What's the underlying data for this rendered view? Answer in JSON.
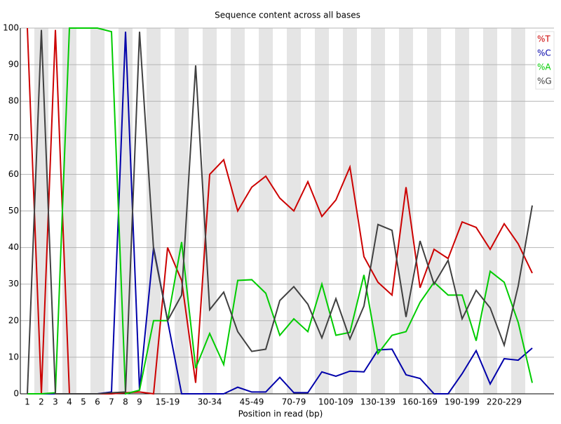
{
  "chart_data": {
    "type": "line",
    "title": "Sequence content across all bases",
    "x_label": "Position in read (bp)",
    "categories": [
      "1",
      "2",
      "3",
      "4",
      "5",
      "6",
      "7",
      "8",
      "9",
      null,
      "15-19",
      null,
      null,
      "30-34",
      null,
      null,
      "45-49",
      null,
      null,
      "70-79",
      null,
      null,
      "100-109",
      null,
      null,
      "130-139",
      null,
      null,
      "160-169",
      null,
      null,
      "190-199",
      null,
      null,
      "220-229",
      null,
      null
    ],
    "series": [
      {
        "name": "%T",
        "color": "#cc0000",
        "values": [
          100,
          0,
          99.5,
          0,
          0,
          0,
          0,
          0.3,
          0.5,
          0,
          40,
          31,
          3,
          60,
          64,
          50,
          56.5,
          59.5,
          53.5,
          50,
          58,
          48.5,
          53,
          62,
          37.5,
          30.5,
          27,
          56.5,
          29,
          39.5,
          37,
          47,
          45.5,
          39.5,
          46.5,
          41,
          33
        ]
      },
      {
        "name": "%C",
        "color": "#0000aa",
        "values": [
          0,
          0,
          0,
          0,
          0,
          0,
          0.5,
          99,
          1,
          40,
          20,
          0,
          0,
          0,
          0,
          1.8,
          0.5,
          0.5,
          4.5,
          0.3,
          0.3,
          6,
          4.8,
          6.2,
          6,
          12,
          12.2,
          5.2,
          4.2,
          0,
          0,
          5.5,
          11.8,
          2.7,
          9.6,
          9.2,
          12.5
        ]
      },
      {
        "name": "%A",
        "color": "#00cc00",
        "values": [
          0,
          0,
          0.3,
          100,
          100,
          100,
          99,
          0,
          1,
          20,
          20,
          41.5,
          7,
          16.5,
          8,
          31,
          31.2,
          27.5,
          16,
          20.5,
          17,
          30,
          16,
          16.8,
          32.5,
          11,
          16,
          17,
          25,
          30.5,
          27,
          27,
          14.5,
          33.5,
          30.5,
          19.5,
          3
        ]
      },
      {
        "name": "%G",
        "color": "#404040",
        "values": [
          0,
          99.5,
          0,
          0,
          0,
          0,
          0.3,
          0.5,
          99,
          39.5,
          20,
          27,
          89.8,
          23,
          27.8,
          17,
          11.6,
          12.2,
          25.5,
          29.3,
          24.5,
          15.3,
          26,
          15,
          24,
          46.3,
          44.7,
          21,
          41.8,
          30,
          36.5,
          20.5,
          28.3,
          23.5,
          13.3,
          29.5,
          51.5
        ]
      }
    ],
    "ylim": [
      0,
      100
    ],
    "yticks": [
      0,
      10,
      20,
      30,
      40,
      50,
      60,
      70,
      80,
      90,
      100
    ],
    "grid": true,
    "legend": "top-right"
  }
}
